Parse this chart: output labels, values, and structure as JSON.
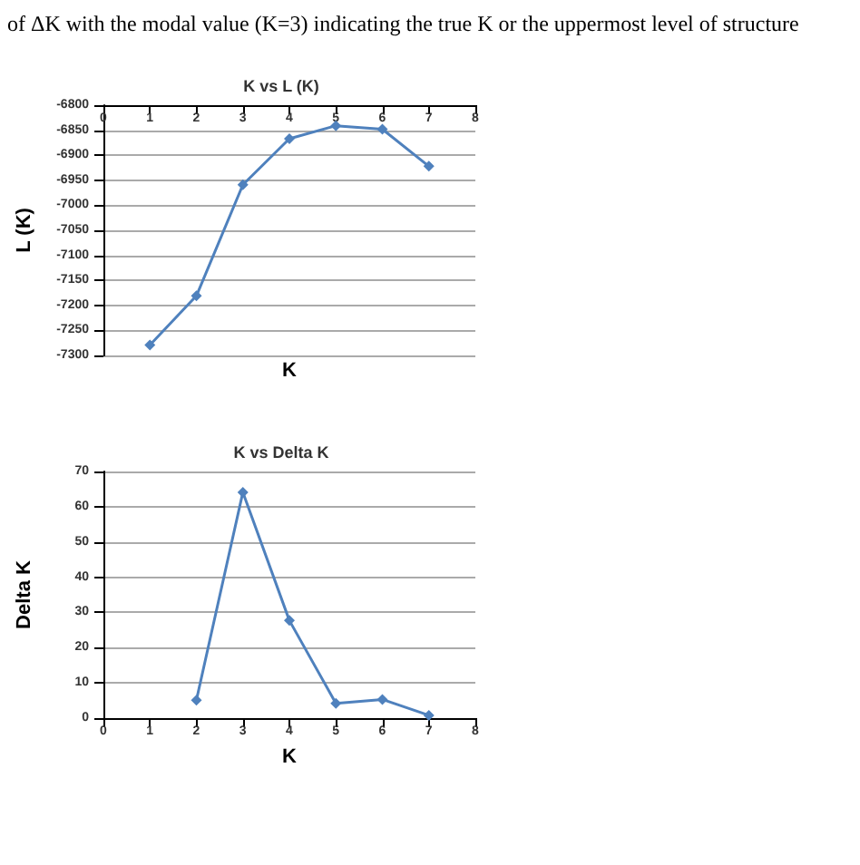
{
  "chart_data": [
    {
      "type": "line",
      "title": "K vs L (K)",
      "xlabel": "K",
      "ylabel": "L (K)",
      "annotations": [
        "of ΔK with the modal value (K=3) indicating the true K or the uppermost level of structure"
      ],
      "x": [
        1,
        2,
        3,
        4,
        5,
        6,
        7
      ],
      "series": [
        {
          "color": "#4f81bd",
          "values": [
            -7279,
            -7181,
            -6959,
            -6867,
            -6841,
            -6848,
            -6922
          ]
        }
      ],
      "xlim": [
        0,
        8
      ],
      "xticks": [
        0,
        1,
        2,
        3,
        4,
        5,
        6,
        7,
        8
      ],
      "ylim": [
        -7300,
        -6800
      ],
      "yticks": [
        -7300,
        -7250,
        -7200,
        -7150,
        -7100,
        -7050,
        -7000,
        -6950,
        -6900,
        -6850,
        -6800
      ],
      "grid": "y",
      "marker": "diamond",
      "line_style": "solid"
    },
    {
      "type": "line",
      "title": "K vs Delta K",
      "xlabel": "K",
      "ylabel": "Delta K",
      "x": [
        2,
        3,
        4,
        5,
        6,
        7
      ],
      "series": [
        {
          "color": "#4f81bd",
          "values": [
            5.1,
            64.1,
            27.7,
            4.2,
            5.3,
            0.8
          ]
        }
      ],
      "xlim": [
        0,
        8
      ],
      "xticks": [
        0,
        1,
        2,
        3,
        4,
        5,
        6,
        7,
        8
      ],
      "ylim": [
        0,
        70
      ],
      "yticks": [
        0,
        10,
        20,
        30,
        40,
        50,
        60,
        70
      ],
      "grid": "y",
      "marker": "diamond",
      "line_style": "solid"
    }
  ]
}
